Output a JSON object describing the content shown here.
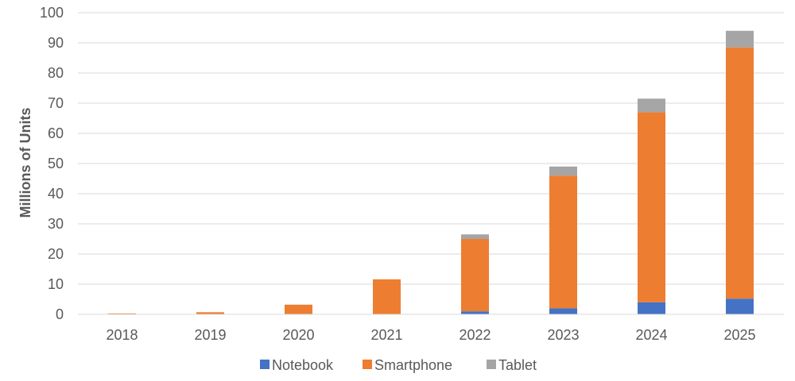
{
  "chart_data": {
    "type": "bar",
    "stacked": true,
    "categories": [
      "2018",
      "2019",
      "2020",
      "2021",
      "2022",
      "2023",
      "2024",
      "2025"
    ],
    "series": [
      {
        "name": "Notebook",
        "color": "#4472C4",
        "values": [
          0,
          0,
          0,
          0,
          1,
          2,
          4,
          5.2
        ]
      },
      {
        "name": "Smartphone",
        "color": "#ED7D31",
        "values": [
          0.3,
          0.7,
          3.2,
          11.6,
          24,
          44,
          63,
          83.3
        ]
      },
      {
        "name": "Tablet",
        "color": "#A5A5A5",
        "values": [
          0,
          0,
          0,
          0,
          1.5,
          3,
          4.5,
          5.5
        ]
      }
    ],
    "ylabel": "Millions of Units",
    "ylim": [
      0,
      100
    ],
    "yticks": [
      0,
      10,
      20,
      30,
      40,
      50,
      60,
      70,
      80,
      90,
      100
    ],
    "grid": true,
    "legend": "bottom"
  }
}
